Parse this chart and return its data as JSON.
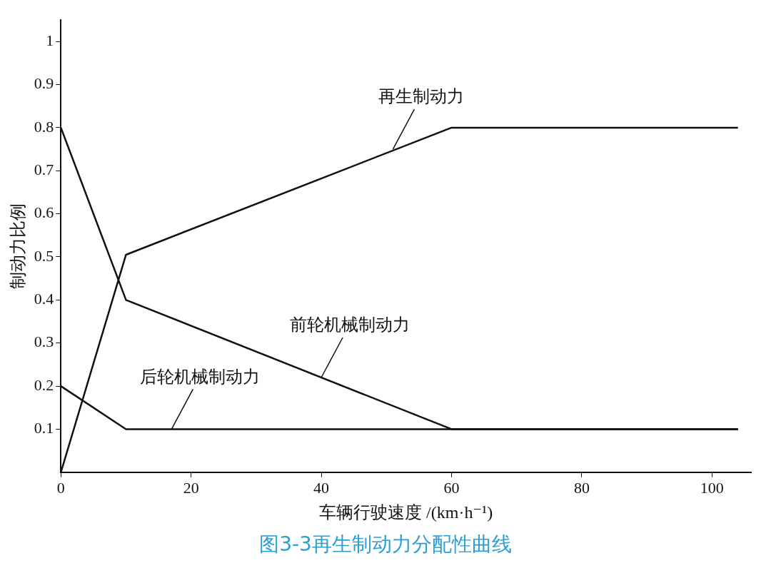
{
  "chart_data": {
    "type": "line",
    "title": "图3-3再生制动力分配性曲线",
    "xlabel": "车辆行驶速度 /(km·h⁻¹)",
    "ylabel": "制动力比例",
    "xlim": [
      0,
      106
    ],
    "xticks": [
      0,
      20,
      40,
      60,
      80,
      100
    ],
    "ylim": [
      0,
      1.05
    ],
    "yticks": [
      0.1,
      0.2,
      0.3,
      0.4,
      0.5,
      0.6,
      0.7,
      0.8,
      0.9,
      1
    ],
    "grid": false,
    "legend": false,
    "marker": "none",
    "line_style": "solid",
    "series": [
      {
        "color": "#111111",
        "x": [
          0,
          10,
          60,
          104
        ],
        "values": [
          0,
          0.505,
          0.8,
          0.8
        ]
      },
      {
        "color": "#111111",
        "x": [
          0,
          10,
          60,
          104
        ],
        "values": [
          0.8,
          0.4,
          0.1,
          0.1
        ]
      },
      {
        "color": "#111111",
        "x": [
          0,
          10,
          104
        ],
        "values": [
          0.2,
          0.1,
          0.1
        ]
      }
    ],
    "annotations": [
      {
        "text": "再生制动力",
        "x": 51,
        "y": 0.75
      },
      {
        "text": "前轮机械制动力",
        "x": 40,
        "y": 0.22
      },
      {
        "text": "后轮机械制动力",
        "x": 17,
        "y": 0.1
      }
    ]
  }
}
